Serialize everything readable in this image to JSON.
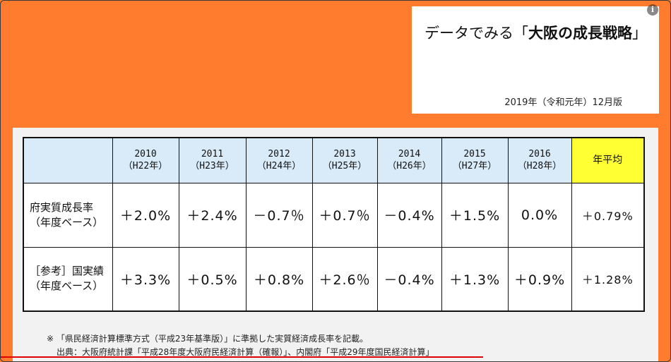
{
  "title_box": {
    "title_prefix": "データでみる「",
    "title_bold": "大阪の成長戦略",
    "title_suffix": "」",
    "edition": "2019年（令和元年）12月版"
  },
  "info_icon_glyph": "i",
  "table": {
    "headers": [
      {
        "year": "2010",
        "era": "（H22年）"
      },
      {
        "year": "2011",
        "era": "（H23年）"
      },
      {
        "year": "2012",
        "era": "（H24年）"
      },
      {
        "year": "2013",
        "era": "（H25年）"
      },
      {
        "year": "2014",
        "era": "（H26年）"
      },
      {
        "year": "2015",
        "era": "（H27年）"
      },
      {
        "year": "2016",
        "era": "（H28年）"
      }
    ],
    "avg_header": "年平均",
    "rows": [
      {
        "label_line1": "府実質成長率",
        "label_line2": "（年度ベース）",
        "values": [
          "＋2.0%",
          "＋2.4%",
          "－0.7％",
          "＋0.7％",
          "－0.4%",
          "＋1.5%",
          "0.0%"
        ],
        "avg": "＋0.79%"
      },
      {
        "label_line1": "［参考］国実績",
        "label_line2": "（年度ベース）",
        "values": [
          "＋3.3%",
          "＋0.5%",
          "＋0.8%",
          "＋2.6％",
          "－0.4%",
          "＋1.3%",
          "＋0.9%"
        ],
        "avg": "＋1.28%"
      }
    ]
  },
  "footnote": "※ 「県民経済計算標準方式（平成23年基準版）」に準拠した実質経済成長率を記載。",
  "source": "出典：大阪府統計課「平成28年度大阪府民経済計算（確報）」、内閣府「平成29年度国民経済計算」",
  "video_progress": 0.72,
  "colors": {
    "background": "#ff7b2e",
    "header_cell": "#d9ebf9",
    "avg_header": "#ffff33",
    "progress": "#e00000"
  }
}
